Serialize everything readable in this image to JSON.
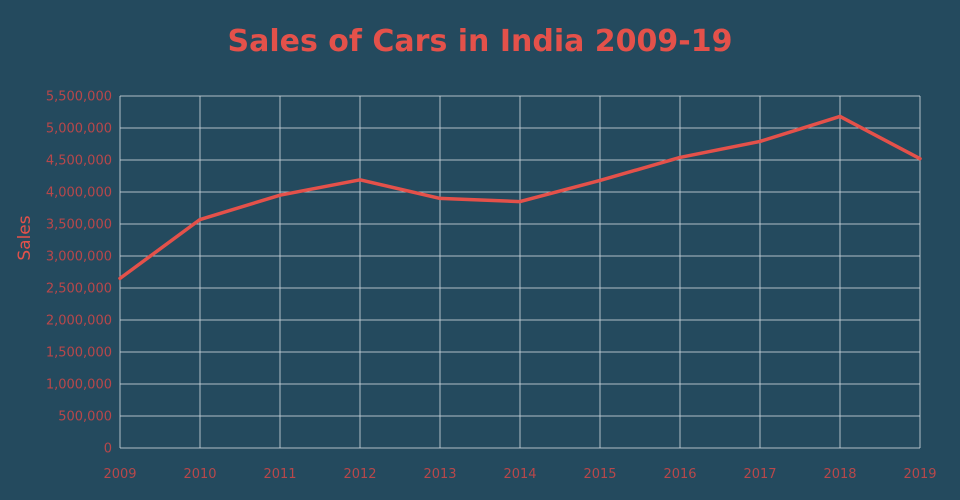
{
  "colors": {
    "background": "#244a5e",
    "accent": "#e4514a",
    "tick_text": "#b8474a",
    "grid": "#c9d3d9"
  },
  "chart_data": {
    "type": "line",
    "title": "Sales of Cars in India 2009-19",
    "xlabel": "",
    "ylabel": "Sales",
    "x": [
      "2009",
      "2010",
      "2011",
      "2012",
      "2013",
      "2014",
      "2015",
      "2016",
      "2017",
      "2018",
      "2019"
    ],
    "series": [
      {
        "values": [
          2650000,
          3570000,
          3950000,
          4190000,
          3900000,
          3850000,
          4180000,
          4540000,
          4790000,
          5180000,
          4520000
        ]
      }
    ],
    "ylim": [
      0,
      5500000
    ],
    "y_ticks": [
      "0",
      "500,000",
      "1,000,000",
      "1,500,000",
      "2,000,000",
      "2,500,000",
      "3,000,000",
      "3,500,000",
      "4,000,000",
      "4,500,000",
      "5,000,000",
      "5,500,000"
    ],
    "y_tick_values": [
      0,
      500000,
      1000000,
      1500000,
      2000000,
      2500000,
      3000000,
      3500000,
      4000000,
      4500000,
      5000000,
      5500000
    ],
    "grid": true,
    "legend": "none"
  }
}
